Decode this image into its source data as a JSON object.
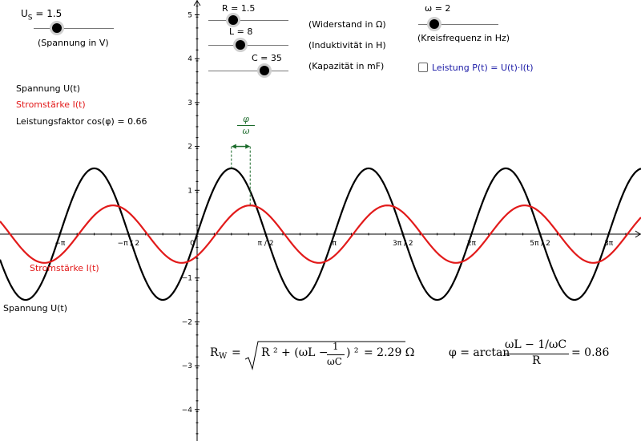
{
  "sliders": {
    "us": {
      "value_label": "U",
      "sub": "S",
      "value": "= 1.5",
      "caption": "(Spannung in V)"
    },
    "r": {
      "value_label": "R = 1.5",
      "caption": "(Widerstand in Ω)"
    },
    "l": {
      "value_label": "L = 8",
      "caption": "(Induktivität in H)"
    },
    "c": {
      "value_label": "C = 35",
      "caption": "(Kapazität in mF)"
    },
    "omega": {
      "value_label": "ω = 2",
      "caption": "(Kreisfrequenz in Hz)"
    }
  },
  "checkbox": {
    "label": "Leistung P(t) = U(t)·I(t)",
    "checked": false,
    "color": "#1a1aa6"
  },
  "legend": {
    "voltage": "Spannung U(t)",
    "current": "Stromstärke I(t)",
    "power_factor": "Leistungsfaktor cos(φ) = 0.66"
  },
  "curve_labels": {
    "current": "Stromstärke I(t)",
    "voltage": "Spannung U(t)"
  },
  "phase_annotation": {
    "num": "φ",
    "den": "ω"
  },
  "formulas": {
    "rw_lhs": "R",
    "rw_sub": "W",
    "rw_eq": "=",
    "rw_r2": "R ² + (ωL −",
    "rw_one": "1",
    "rw_wc": "ωC",
    "rw_close": ") ²",
    "rw_val": "= 2.29 Ω",
    "phi_lhs": "φ = arctan",
    "phi_num": "ωL − 1/ωC",
    "phi_den": "R",
    "phi_val": "= 0.86"
  },
  "colors": {
    "voltage": "#000000",
    "current": "#e21a1a",
    "annotation": "#1a6a2a"
  },
  "chart_data": {
    "type": "line",
    "x_ticks": [
      "−π",
      "−π / 2",
      "0",
      "π / 2",
      "π",
      "3π / 2",
      "2π",
      "5π / 2",
      "3π"
    ],
    "y_ticks": [
      "5",
      "4",
      "3",
      "2",
      "1",
      "0",
      "−1",
      "−2",
      "−3",
      "−4"
    ],
    "series": [
      {
        "name": "Spannung U(t)",
        "amplitude": 1.5,
        "omega": 2,
        "phase": 0
      },
      {
        "name": "Stromstärke I(t)",
        "amplitude": 0.655,
        "omega": 2,
        "phase": -0.86
      }
    ],
    "xlim": [
      -4.2,
      9.3
    ],
    "ylim": [
      -4.8,
      5.3
    ]
  }
}
